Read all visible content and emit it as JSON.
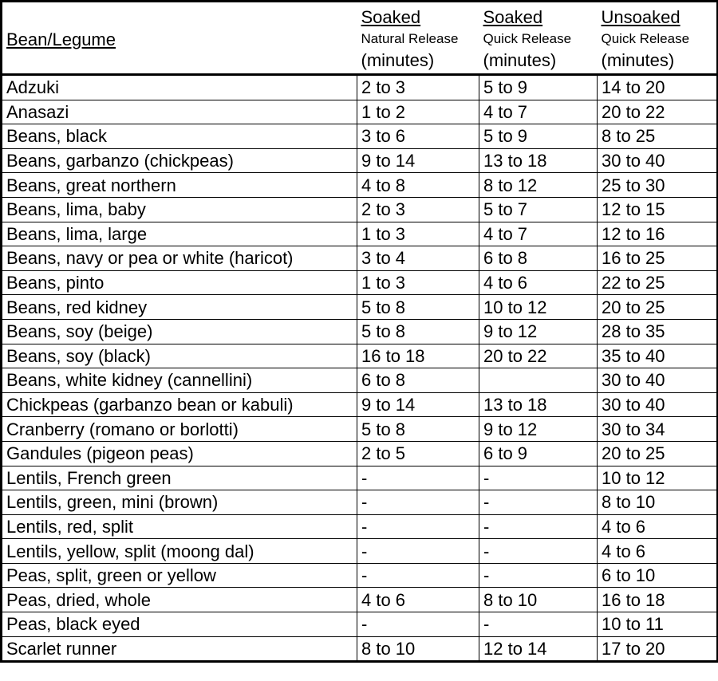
{
  "header": {
    "name_col": "Bean/Legume",
    "columns": [
      {
        "title": "Soaked",
        "subtitle": "Natural Release",
        "unit": "(minutes)"
      },
      {
        "title": "Soaked",
        "subtitle": "Quick Release",
        "unit": "(minutes)"
      },
      {
        "title": "Unsoaked",
        "subtitle": "Quick Release",
        "unit": "(minutes)"
      }
    ]
  },
  "rows": [
    [
      "Adzuki",
      "2 to 3",
      "5 to 9",
      "14 to 20"
    ],
    [
      "Anasazi",
      "1 to 2",
      "4 to 7",
      "20 to 22"
    ],
    [
      "Beans, black",
      "3 to 6",
      "5 to 9",
      "8 to 25"
    ],
    [
      "Beans, garbanzo (chickpeas)",
      "9 to 14",
      "13 to 18",
      "30 to 40"
    ],
    [
      "Beans, great northern",
      "4 to 8",
      "8 to 12",
      "25 to 30"
    ],
    [
      "Beans, lima, baby",
      "2 to 3",
      "5 to 7",
      "12 to 15"
    ],
    [
      "Beans, lima, large",
      "1 to 3",
      "4 to 7",
      "12 to 16"
    ],
    [
      "Beans, navy or pea or white (haricot)",
      "3 to 4",
      "6 to 8",
      "16 to 25"
    ],
    [
      "Beans, pinto",
      "1 to 3",
      "4 to 6",
      "22 to 25"
    ],
    [
      "Beans, red kidney",
      "5 to 8",
      "10 to 12",
      "20 to 25"
    ],
    [
      "Beans, soy (beige)",
      "5 to 8",
      "9 to 12",
      "28 to 35"
    ],
    [
      "Beans, soy (black)",
      "16 to 18",
      "20 to 22",
      "35 to 40"
    ],
    [
      "Beans, white kidney (cannellini)",
      "6 to 8",
      "",
      "30 to 40"
    ],
    [
      "Chickpeas (garbanzo bean or kabuli)",
      "9 to 14",
      "13 to 18",
      "30 to 40"
    ],
    [
      "Cranberry (romano or borlotti)",
      "5 to 8",
      "9 to 12",
      "30 to 34"
    ],
    [
      "Gandules (pigeon peas)",
      "2 to 5",
      "6 to 9",
      "20 to 25"
    ],
    [
      "Lentils, French green",
      "-",
      "-",
      "10 to 12"
    ],
    [
      "Lentils, green, mini (brown)",
      "-",
      "-",
      "8 to 10"
    ],
    [
      "Lentils, red, split",
      "-",
      "-",
      "4 to 6"
    ],
    [
      "Lentils, yellow, split (moong dal)",
      "-",
      "-",
      "4 to 6"
    ],
    [
      "Peas, split, green or yellow",
      "-",
      "-",
      "6 to 10"
    ],
    [
      "Peas, dried, whole",
      "4 to 6",
      "8 to 10",
      "16 to 18"
    ],
    [
      "Peas, black eyed",
      "-",
      "-",
      "10 to 11"
    ],
    [
      "Scarlet runner",
      "8 to 10",
      "12 to 14",
      "17 to 20"
    ]
  ]
}
